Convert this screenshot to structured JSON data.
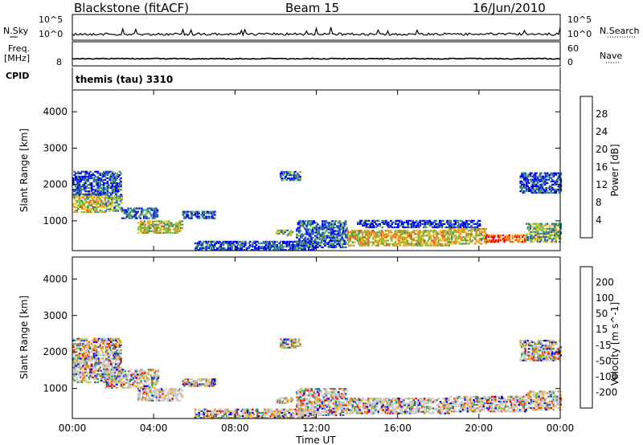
{
  "header": {
    "title": "Blackstone (fitACF)",
    "beam": "Beam 15",
    "date": "16/Jun/2010"
  },
  "status_panels": {
    "noise": {
      "left_label": "N.Sky",
      "right_label": "N.Search",
      "left_ticks": [
        "10^5",
        "10^0"
      ],
      "right_ticks": [
        "10^5",
        "10^0"
      ]
    },
    "freq": {
      "left_label_line1": "Freq.",
      "left_label_line2": "[MHz]",
      "right_label": "Nave",
      "left_tick": "8",
      "right_ticks": [
        "60",
        "0"
      ]
    },
    "cpid": {
      "left_label": "CPID",
      "value_text": "themis (tau) 3310"
    }
  },
  "colors": {
    "power_scale": [
      "#0000ff",
      "#2b5fb5",
      "#3a8c6a",
      "#6cc040",
      "#f0c020",
      "#f08a10",
      "#f06010",
      "#ff0000"
    ],
    "velocity_scale": [
      "#0000ff",
      "#2b5fb5",
      "#3a8c6a",
      "#6cc040",
      "#c8c8c8",
      "#f0c020",
      "#f08a10",
      "#f06010",
      "#ff0000"
    ],
    "ground_scatter": "#c8c8c8"
  },
  "chart_data": [
    {
      "type": "heatmap",
      "name": "power",
      "ylabel": "Slant Range [km]",
      "ylim": [
        180,
        4600
      ],
      "yticks": [
        1000,
        2000,
        3000,
        4000
      ],
      "xlim": [
        0,
        24
      ],
      "colorbar": {
        "label": "Power [dB]",
        "range": [
          0,
          32
        ],
        "ticks": [
          "4",
          "8",
          "12",
          "16",
          "20",
          "24",
          "28"
        ]
      },
      "scatter_regions": [
        {
          "t0": 0.0,
          "t1": 1.6,
          "r0": 1220,
          "r1": 1760,
          "level": 0.55
        },
        {
          "t0": 0.0,
          "t1": 2.4,
          "r0": 1700,
          "r1": 2350,
          "level": 0.15
        },
        {
          "t0": 1.6,
          "t1": 2.4,
          "r0": 1250,
          "r1": 1700,
          "level": 0.35
        },
        {
          "t0": 2.4,
          "t1": 4.2,
          "r0": 1050,
          "r1": 1350,
          "level": 0.2
        },
        {
          "t0": 3.2,
          "t1": 5.4,
          "r0": 650,
          "r1": 1000,
          "level": 0.5
        },
        {
          "t0": 5.4,
          "t1": 7.0,
          "r0": 1050,
          "r1": 1250,
          "level": 0.15
        },
        {
          "t0": 6.0,
          "t1": 12.0,
          "r0": 180,
          "r1": 420,
          "level": 0.15
        },
        {
          "t0": 10.0,
          "t1": 10.8,
          "r0": 580,
          "r1": 760,
          "level": 0.4
        },
        {
          "t0": 10.2,
          "t1": 11.2,
          "r0": 2100,
          "r1": 2350,
          "level": 0.2
        },
        {
          "t0": 11.0,
          "t1": 13.5,
          "r0": 250,
          "r1": 1000,
          "level": 0.2
        },
        {
          "t0": 13.5,
          "t1": 18.5,
          "r0": 300,
          "r1": 750,
          "level": 0.6
        },
        {
          "t0": 18.5,
          "t1": 20.3,
          "r0": 350,
          "r1": 800,
          "level": 0.55
        },
        {
          "t0": 20.3,
          "t1": 22.3,
          "r0": 400,
          "r1": 620,
          "level": 0.85
        },
        {
          "t0": 22.3,
          "t1": 24.0,
          "r0": 400,
          "r1": 900,
          "level": 0.4
        },
        {
          "t0": 22.0,
          "t1": 24.0,
          "r0": 1750,
          "r1": 2300,
          "level": 0.15
        },
        {
          "t0": 14.0,
          "t1": 20.0,
          "r0": 800,
          "r1": 1000,
          "level": 0.1
        }
      ]
    },
    {
      "type": "heatmap",
      "name": "velocity",
      "ylabel": "Slant Range [km]",
      "xlabel": "Time UT",
      "ylim": [
        180,
        4600
      ],
      "yticks": [
        1000,
        2000,
        3000,
        4000
      ],
      "xlim": [
        0,
        24
      ],
      "xticks": [
        "00:00",
        "04:00",
        "08:00",
        "12:00",
        "16:00",
        "20:00",
        "00:00"
      ],
      "colorbar": {
        "label": "Velocity [m s^-1]",
        "ticks": [
          "200",
          "100",
          "50",
          "15",
          "-15",
          "-50",
          "-100",
          "-200"
        ]
      },
      "scatter_regions": [
        {
          "t0": 0.0,
          "t1": 2.4,
          "r0": 1150,
          "r1": 1800,
          "level": 0.45
        },
        {
          "t0": 0.0,
          "t1": 2.4,
          "r0": 1800,
          "r1": 2350,
          "level": 0.3
        },
        {
          "t0": 1.6,
          "t1": 4.2,
          "r0": 1000,
          "r1": 1500,
          "level": 0.45
        },
        {
          "t0": 3.2,
          "t1": 5.4,
          "r0": 650,
          "r1": 1000,
          "level": 0.65
        },
        {
          "t0": 5.4,
          "t1": 7.0,
          "r0": 1050,
          "r1": 1250,
          "level": 0.3
        },
        {
          "t0": 6.0,
          "t1": 12.0,
          "r0": 180,
          "r1": 420,
          "level": 0.3
        },
        {
          "t0": 10.0,
          "t1": 10.8,
          "r0": 580,
          "r1": 760,
          "level": 0.45
        },
        {
          "t0": 10.2,
          "t1": 11.2,
          "r0": 2100,
          "r1": 2350,
          "level": 0.15
        },
        {
          "t0": 11.0,
          "t1": 13.5,
          "r0": 250,
          "r1": 1000,
          "level": 0.45
        },
        {
          "t0": 13.5,
          "t1": 18.5,
          "r0": 300,
          "r1": 750,
          "level": 0.45
        },
        {
          "t0": 18.5,
          "t1": 22.3,
          "r0": 350,
          "r1": 800,
          "level": 0.45
        },
        {
          "t0": 22.3,
          "t1": 24.0,
          "r0": 400,
          "r1": 900,
          "level": 0.45
        },
        {
          "t0": 22.0,
          "t1": 24.0,
          "r0": 1750,
          "r1": 2300,
          "level": 0.25
        }
      ]
    }
  ]
}
